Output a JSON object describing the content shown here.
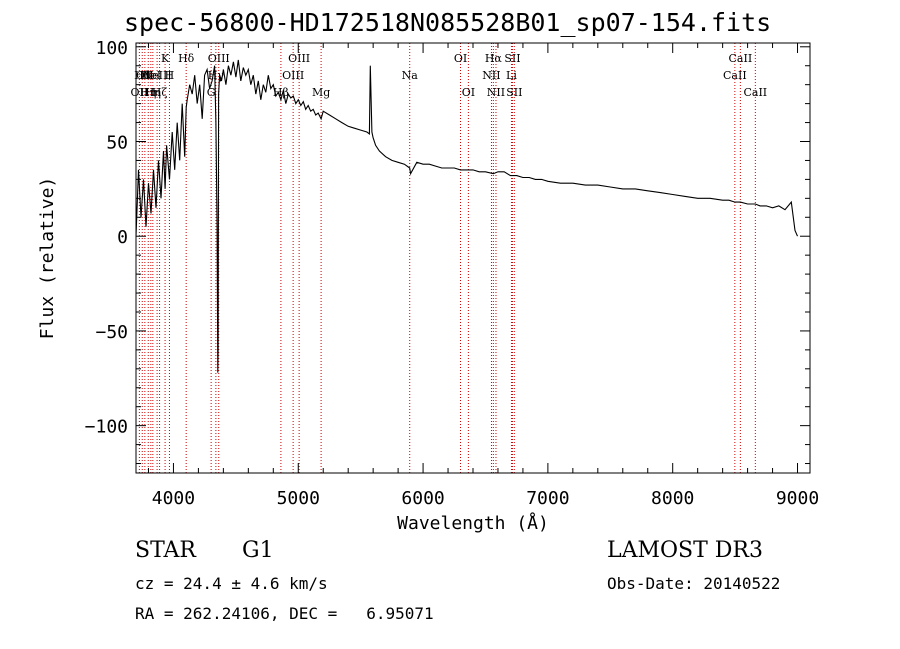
{
  "title": "spec-56800-HD172518N085528B01_sp07-154.fits",
  "footer": {
    "object_class": "STAR",
    "subclass": "G1",
    "cz": "cz = 24.4 ± 4.6 km/s",
    "coords": "RA = 262.24106, DEC =   6.95071",
    "survey": "LAMOST DR3",
    "obs_date": "Obs-Date: 20140522"
  },
  "colors": {
    "line": "#000000",
    "marker": "#cc0000",
    "bg": "#ffffff"
  },
  "chart_data": {
    "type": "line",
    "title": "spec-56800-HD172518N085528B01_sp07-154.fits",
    "xlabel": "Wavelength (Å)",
    "ylabel": "Flux (relative)",
    "xlim": [
      3700,
      9100
    ],
    "ylim": [
      -125,
      102
    ],
    "xticks": [
      4000,
      5000,
      6000,
      7000,
      8000,
      9000
    ],
    "yticks": [
      -100,
      -50,
      0,
      50,
      100
    ],
    "xtick_labels": [
      "4000",
      "5000",
      "6000",
      "7000",
      "8000",
      "9000"
    ],
    "ytick_labels": [
      "−100",
      "−50",
      "0",
      "50",
      "100"
    ],
    "series": [
      {
        "name": "flux",
        "x": [
          3700,
          3720,
          3740,
          3760,
          3780,
          3800,
          3820,
          3840,
          3860,
          3880,
          3900,
          3920,
          3933,
          3945,
          3968,
          3990,
          4010,
          4030,
          4050,
          4070,
          4090,
          4102,
          4110,
          4130,
          4150,
          4170,
          4190,
          4210,
          4230,
          4250,
          4270,
          4290,
          4310,
          4330,
          4340,
          4350,
          4355,
          4358,
          4362,
          4370,
          4385,
          4400,
          4420,
          4440,
          4460,
          4480,
          4500,
          4520,
          4540,
          4560,
          4580,
          4600,
          4620,
          4640,
          4660,
          4680,
          4700,
          4720,
          4740,
          4760,
          4780,
          4800,
          4820,
          4840,
          4861,
          4880,
          4900,
          4920,
          4940,
          4960,
          4980,
          5000,
          5020,
          5040,
          5060,
          5080,
          5100,
          5120,
          5140,
          5160,
          5183,
          5200,
          5250,
          5300,
          5350,
          5400,
          5450,
          5500,
          5550,
          5570,
          5577,
          5590,
          5600,
          5620,
          5650,
          5700,
          5750,
          5800,
          5850,
          5893,
          5900,
          5950,
          6000,
          6050,
          6100,
          6150,
          6200,
          6250,
          6300,
          6350,
          6400,
          6450,
          6500,
          6563,
          6600,
          6650,
          6700,
          6750,
          6800,
          6850,
          6900,
          6950,
          7000,
          7100,
          7200,
          7300,
          7400,
          7500,
          7600,
          7700,
          7800,
          7900,
          8000,
          8100,
          8200,
          8300,
          8400,
          8450,
          8498,
          8542,
          8600,
          8662,
          8700,
          8750,
          8800,
          8850,
          8900,
          8950,
          8980,
          9000
        ],
        "y": [
          0,
          35,
          10,
          30,
          5,
          28,
          12,
          35,
          15,
          40,
          20,
          45,
          25,
          48,
          30,
          55,
          35,
          60,
          40,
          70,
          42,
          68,
          72,
          80,
          75,
          85,
          70,
          80,
          62,
          85,
          88,
          78,
          82,
          90,
          60,
          5,
          -72,
          -60,
          75,
          85,
          82,
          88,
          80,
          90,
          85,
          92,
          84,
          93,
          82,
          89,
          85,
          88,
          80,
          85,
          75,
          82,
          72,
          80,
          76,
          85,
          78,
          80,
          74,
          76,
          72,
          77,
          70,
          75,
          73,
          74,
          70,
          72,
          69,
          71,
          67,
          69,
          66,
          67,
          64,
          65,
          62,
          66,
          64,
          62,
          60,
          58,
          57,
          56,
          55,
          54,
          90,
          55,
          52,
          48,
          45,
          42,
          40,
          39,
          38,
          36,
          33,
          39,
          38,
          38,
          37,
          36,
          36,
          36,
          35,
          35,
          35,
          34,
          34,
          33,
          34,
          34,
          32,
          32,
          31,
          31,
          30,
          30,
          29,
          28,
          28,
          27,
          27,
          26,
          25,
          25,
          24,
          23,
          22,
          21,
          20,
          20,
          19,
          19,
          18,
          18,
          17,
          17,
          16,
          16,
          15,
          16,
          14,
          18,
          3,
          0
        ]
      }
    ],
    "line_markers": [
      {
        "x": 3727,
        "label": "OII",
        "row": 2
      },
      {
        "x": 3750,
        "label": "Hθ",
        "row": 1
      },
      {
        "x": 3771,
        "label": "OII",
        "row": 1
      },
      {
        "x": 3798,
        "label": "Hη",
        "row": 2
      },
      {
        "x": 3819,
        "label": "HeI",
        "row": 1
      },
      {
        "x": 3835,
        "label": "Hη",
        "row": 2
      },
      {
        "x": 3869,
        "label": "NeIII",
        "row": 1
      },
      {
        "x": 3889,
        "label": "Hζ",
        "row": 2
      },
      {
        "x": 3933,
        "label": "K",
        "row": 0
      },
      {
        "x": 3968,
        "label": "H",
        "row": 1
      },
      {
        "x": 4102,
        "label": "Hδ",
        "row": 0
      },
      {
        "x": 4302,
        "label": "G",
        "row": 2
      },
      {
        "x": 4340,
        "label": "Hγ",
        "row": 1
      },
      {
        "x": 4363,
        "label": "OIII",
        "row": 0
      },
      {
        "x": 4861,
        "label": "Hβ",
        "row": 2
      },
      {
        "x": 4959,
        "label": "OIII",
        "row": 1
      },
      {
        "x": 5007,
        "label": "OIII",
        "row": 0
      },
      {
        "x": 5183,
        "label": "Mg",
        "row": 2
      },
      {
        "x": 5893,
        "label": "Na",
        "row": 1
      },
      {
        "x": 6300,
        "label": "OI",
        "row": 0
      },
      {
        "x": 6363,
        "label": "OI",
        "row": 2
      },
      {
        "x": 6548,
        "label": "NII",
        "row": 1
      },
      {
        "x": 6563,
        "label": "Hα",
        "row": 0
      },
      {
        "x": 6584,
        "label": "NII",
        "row": 2
      },
      {
        "x": 6708,
        "label": "Li",
        "row": 1
      },
      {
        "x": 6716,
        "label": "SII",
        "row": 0
      },
      {
        "x": 6731,
        "label": "SII",
        "row": 2
      },
      {
        "x": 8498,
        "label": "CaII",
        "row": 1
      },
      {
        "x": 8542,
        "label": "CaII",
        "row": 0
      },
      {
        "x": 8662,
        "label": "CaII",
        "row": 2
      }
    ]
  }
}
